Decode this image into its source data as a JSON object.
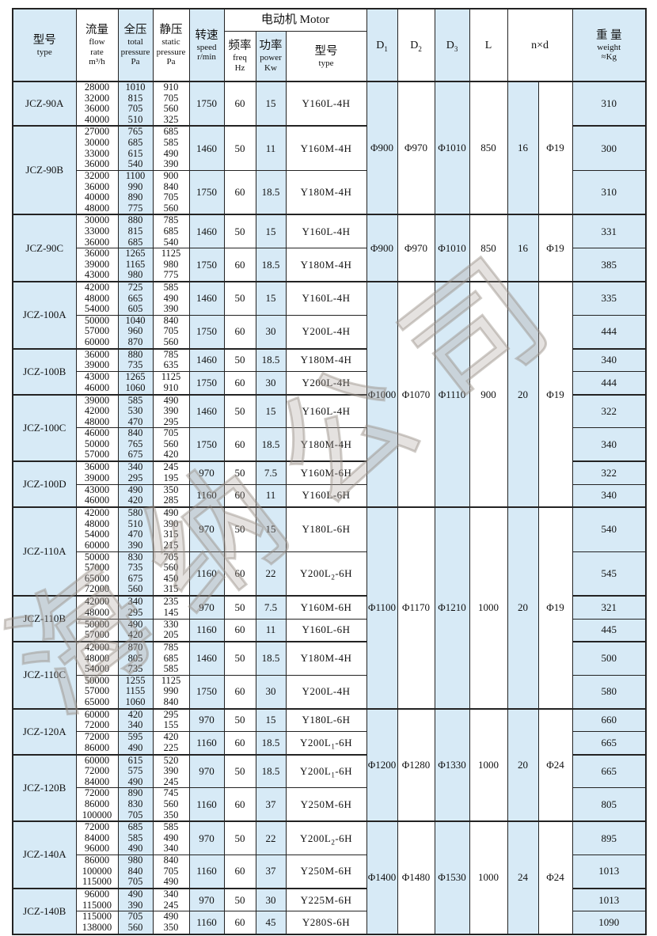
{
  "colors": {
    "cell_blue": "#d7eaf6",
    "border": "#232323"
  },
  "watermark": {
    "text": "海纳公司"
  },
  "header": {
    "model": {
      "zh": "型号",
      "en": "type"
    },
    "flow": {
      "zh": "流量",
      "en1": "flow",
      "en2": "rate",
      "unit": "m³/h"
    },
    "total": {
      "zh": "全压",
      "en1": "total",
      "en2": "pressure",
      "unit": "Pa"
    },
    "static": {
      "zh": "静压",
      "en1": "static",
      "en2": "pressure",
      "unit": "Pa"
    },
    "speed": {
      "zh": "转速",
      "en1": "speed",
      "en2": "r/min"
    },
    "motor_group": "电动机 Motor",
    "freq": {
      "zh": "频率",
      "en1": "freq",
      "en2": "Hz"
    },
    "power": {
      "zh": "功率",
      "en1": "power",
      "en2": "Kw"
    },
    "motor_type": {
      "zh": "型号",
      "en": "type"
    },
    "d1": "D₁",
    "d2": "D₂",
    "d3": "D₃",
    "l": "L",
    "nd": "n×d",
    "weight": {
      "zh": "重 量",
      "en": "weight",
      "unit": "≈Kg"
    }
  },
  "models": [
    {
      "name": "JCZ-90A",
      "rows": [
        {
          "flow": [
            "28000",
            "32000",
            "36000",
            "40000"
          ],
          "total": [
            "1010",
            "815",
            "705",
            "510"
          ],
          "static": [
            "910",
            "705",
            "560",
            "325"
          ],
          "speed": "1750",
          "freq": "60",
          "power": "15",
          "motor": "Y160L-4H",
          "weight": "310"
        }
      ]
    },
    {
      "name": "JCZ-90B",
      "rows": [
        {
          "flow": [
            "27000",
            "30000",
            "33000",
            "36000"
          ],
          "total": [
            "765",
            "685",
            "615",
            "540"
          ],
          "static": [
            "685",
            "585",
            "490",
            "390"
          ],
          "speed": "1460",
          "freq": "50",
          "power": "11",
          "motor": "Y160M-4H",
          "weight": "300"
        },
        {
          "flow": [
            "32000",
            "36000",
            "40000",
            "48000"
          ],
          "total": [
            "1100",
            "990",
            "890",
            "775"
          ],
          "static": [
            "900",
            "840",
            "705",
            "560"
          ],
          "speed": "1750",
          "freq": "60",
          "power": "18.5",
          "motor": "Y180M-4H",
          "weight": "310"
        }
      ]
    },
    {
      "name": "JCZ-90C",
      "rows": [
        {
          "flow": [
            "30000",
            "33000",
            "36000"
          ],
          "total": [
            "880",
            "815",
            "685"
          ],
          "static": [
            "785",
            "685",
            "540"
          ],
          "speed": "1460",
          "freq": "50",
          "power": "15",
          "motor": "Y160L-4H",
          "weight": "331"
        },
        {
          "flow": [
            "36000",
            "39000",
            "43000"
          ],
          "total": [
            "1265",
            "1165",
            "980"
          ],
          "static": [
            "1125",
            "980",
            "775"
          ],
          "speed": "1750",
          "freq": "60",
          "power": "18.5",
          "motor": "Y180M-4H",
          "weight": "385"
        }
      ]
    },
    {
      "name": "JCZ-100A",
      "rows": [
        {
          "flow": [
            "42000",
            "48000",
            "54000"
          ],
          "total": [
            "725",
            "665",
            "605"
          ],
          "static": [
            "585",
            "490",
            "390"
          ],
          "speed": "1460",
          "freq": "50",
          "power": "15",
          "motor": "Y160L-4H",
          "weight": "335"
        },
        {
          "flow": [
            "50000",
            "57000",
            "60000"
          ],
          "total": [
            "1040",
            "960",
            "870"
          ],
          "static": [
            "840",
            "705",
            "560"
          ],
          "speed": "1750",
          "freq": "60",
          "power": "30",
          "motor": "Y200L-4H",
          "weight": "444"
        }
      ]
    },
    {
      "name": "JCZ-100B",
      "rows": [
        {
          "flow": [
            "36000",
            "39000"
          ],
          "total": [
            "880",
            "735"
          ],
          "static": [
            "785",
            "635"
          ],
          "speed": "1460",
          "freq": "50",
          "power": "18.5",
          "motor": "Y180M-4H",
          "weight": "340"
        },
        {
          "flow": [
            "43000",
            "46000"
          ],
          "total": [
            "1265",
            "1060"
          ],
          "static": [
            "1125",
            "910"
          ],
          "speed": "1750",
          "freq": "60",
          "power": "30",
          "motor": "Y200L-4H",
          "weight": "444"
        }
      ]
    },
    {
      "name": "JCZ-100C",
      "rows": [
        {
          "flow": [
            "39000",
            "42000",
            "48000"
          ],
          "total": [
            "585",
            "530",
            "470"
          ],
          "static": [
            "490",
            "390",
            "295"
          ],
          "speed": "1460",
          "freq": "50",
          "power": "15",
          "motor": "Y160L-4H",
          "weight": "322"
        },
        {
          "flow": [
            "46000",
            "50000",
            "57000"
          ],
          "total": [
            "840",
            "765",
            "675"
          ],
          "static": [
            "705",
            "560",
            "420"
          ],
          "speed": "1750",
          "freq": "60",
          "power": "18.5",
          "motor": "Y180M-4H",
          "weight": "340"
        }
      ]
    },
    {
      "name": "JCZ-100D",
      "rows": [
        {
          "flow": [
            "36000",
            "39000"
          ],
          "total": [
            "340",
            "295"
          ],
          "static": [
            "245",
            "195"
          ],
          "speed": "970",
          "freq": "50",
          "power": "7.5",
          "motor": "Y160M-6H",
          "weight": "322"
        },
        {
          "flow": [
            "43000",
            "46000"
          ],
          "total": [
            "490",
            "420"
          ],
          "static": [
            "350",
            "285"
          ],
          "speed": "1160",
          "freq": "60",
          "power": "11",
          "motor": "Y160L-6H",
          "weight": "340"
        }
      ]
    },
    {
      "name": "JCZ-110A",
      "rows": [
        {
          "flow": [
            "42000",
            "48000",
            "54000",
            "60000"
          ],
          "total": [
            "580",
            "510",
            "470",
            "390"
          ],
          "static": [
            "490",
            "390",
            "315",
            "215"
          ],
          "speed": "970",
          "freq": "50",
          "power": "15",
          "motor": "Y180L-6H",
          "weight": "540"
        },
        {
          "flow": [
            "50000",
            "57000",
            "65000",
            "72000"
          ],
          "total": [
            "830",
            "735",
            "675",
            "560"
          ],
          "static": [
            "705",
            "560",
            "450",
            "315"
          ],
          "speed": "1160",
          "freq": "60",
          "power": "22",
          "motor": "Y200L₂-6H",
          "weight": "545"
        }
      ]
    },
    {
      "name": "JCZ-110B",
      "rows": [
        {
          "flow": [
            "42000",
            "48000"
          ],
          "total": [
            "340",
            "295"
          ],
          "static": [
            "235",
            "145"
          ],
          "speed": "970",
          "freq": "50",
          "power": "7.5",
          "motor": "Y160M-6H",
          "weight": "321"
        },
        {
          "flow": [
            "50000",
            "57000"
          ],
          "total": [
            "490",
            "420"
          ],
          "static": [
            "330",
            "205"
          ],
          "speed": "1160",
          "freq": "60",
          "power": "11",
          "motor": "Y160L-6H",
          "weight": "445"
        }
      ]
    },
    {
      "name": "JCZ-110C",
      "rows": [
        {
          "flow": [
            "42000",
            "48000",
            "54000"
          ],
          "total": [
            "870",
            "805",
            "735"
          ],
          "static": [
            "785",
            "685",
            "585"
          ],
          "speed": "1460",
          "freq": "50",
          "power": "18.5",
          "motor": "Y180M-4H",
          "weight": "500"
        },
        {
          "flow": [
            "50000",
            "57000",
            "65000"
          ],
          "total": [
            "1255",
            "1155",
            "1060"
          ],
          "static": [
            "1125",
            "990",
            "840"
          ],
          "speed": "1750",
          "freq": "60",
          "power": "30",
          "motor": "Y200L-4H",
          "weight": "580"
        }
      ]
    },
    {
      "name": "JCZ-120A",
      "rows": [
        {
          "flow": [
            "60000",
            "72000"
          ],
          "total": [
            "420",
            "340"
          ],
          "static": [
            "295",
            "155"
          ],
          "speed": "970",
          "freq": "50",
          "power": "15",
          "motor": "Y180L-6H",
          "weight": "660"
        },
        {
          "flow": [
            "72000",
            "86000"
          ],
          "total": [
            "595",
            "490"
          ],
          "static": [
            "420",
            "225"
          ],
          "speed": "1160",
          "freq": "60",
          "power": "18.5",
          "motor": "Y200L₁-6H",
          "weight": "665"
        }
      ]
    },
    {
      "name": "JCZ-120B",
      "rows": [
        {
          "flow": [
            "60000",
            "72000",
            "84000"
          ],
          "total": [
            "615",
            "575",
            "490"
          ],
          "static": [
            "520",
            "390",
            "245"
          ],
          "speed": "970",
          "freq": "50",
          "power": "18.5",
          "motor": "Y200L₁-6H",
          "weight": "665"
        },
        {
          "flow": [
            "72000",
            "86000",
            "100000"
          ],
          "total": [
            "890",
            "830",
            "705"
          ],
          "static": [
            "745",
            "560",
            "350"
          ],
          "speed": "1160",
          "freq": "60",
          "power": "37",
          "motor": "Y250M-6H",
          "weight": "805"
        }
      ]
    },
    {
      "name": "JCZ-140A",
      "rows": [
        {
          "flow": [
            "72000",
            "84000",
            "96000"
          ],
          "total": [
            "685",
            "585",
            "490"
          ],
          "static": [
            "585",
            "490",
            "340"
          ],
          "speed": "970",
          "freq": "50",
          "power": "22",
          "motor": "Y200L₂-6H",
          "weight": "895"
        },
        {
          "flow": [
            "86000",
            "100000",
            "115000"
          ],
          "total": [
            "980",
            "840",
            "705"
          ],
          "static": [
            "840",
            "705",
            "490"
          ],
          "speed": "1160",
          "freq": "60",
          "power": "37",
          "motor": "Y250M-6H",
          "weight": "1013"
        }
      ]
    },
    {
      "name": "JCZ-140B",
      "rows": [
        {
          "flow": [
            "96000",
            "115000"
          ],
          "total": [
            "490",
            "390"
          ],
          "static": [
            "340",
            "245"
          ],
          "speed": "970",
          "freq": "50",
          "power": "30",
          "motor": "Y225M-6H",
          "weight": "1013"
        },
        {
          "flow": [
            "115000",
            "138000"
          ],
          "total": [
            "705",
            "560"
          ],
          "static": [
            "490",
            "350"
          ],
          "speed": "1160",
          "freq": "60",
          "power": "45",
          "motor": "Y280S-6H",
          "weight": "1090"
        }
      ]
    }
  ],
  "dim_groups": [
    {
      "row_span": 3,
      "d1": "Φ900",
      "d2": "Φ970",
      "d3": "Φ1010",
      "l": "850",
      "n": "16",
      "d": "Φ19"
    },
    {
      "row_span": 2,
      "d1": "Φ900",
      "d2": "Φ970",
      "d3": "Φ1010",
      "l": "850",
      "n": "16",
      "d": "Φ19"
    },
    {
      "row_span": 8,
      "d1": "Φ1000",
      "d2": "Φ1070",
      "d3": "Φ1110",
      "l": "900",
      "n": "20",
      "d": "Φ19"
    },
    {
      "row_span": 6,
      "d1": "Φ1100",
      "d2": "Φ1170",
      "d3": "Φ1210",
      "l": "1000",
      "n": "20",
      "d": "Φ19"
    },
    {
      "row_span": 4,
      "d1": "Φ1200",
      "d2": "Φ1280",
      "d3": "Φ1330",
      "l": "1000",
      "n": "20",
      "d": "Φ24"
    },
    {
      "row_span": 4,
      "d1": "Φ1400",
      "d2": "Φ1480",
      "d3": "Φ1530",
      "l": "1000",
      "n": "24",
      "d": "Φ24"
    }
  ]
}
